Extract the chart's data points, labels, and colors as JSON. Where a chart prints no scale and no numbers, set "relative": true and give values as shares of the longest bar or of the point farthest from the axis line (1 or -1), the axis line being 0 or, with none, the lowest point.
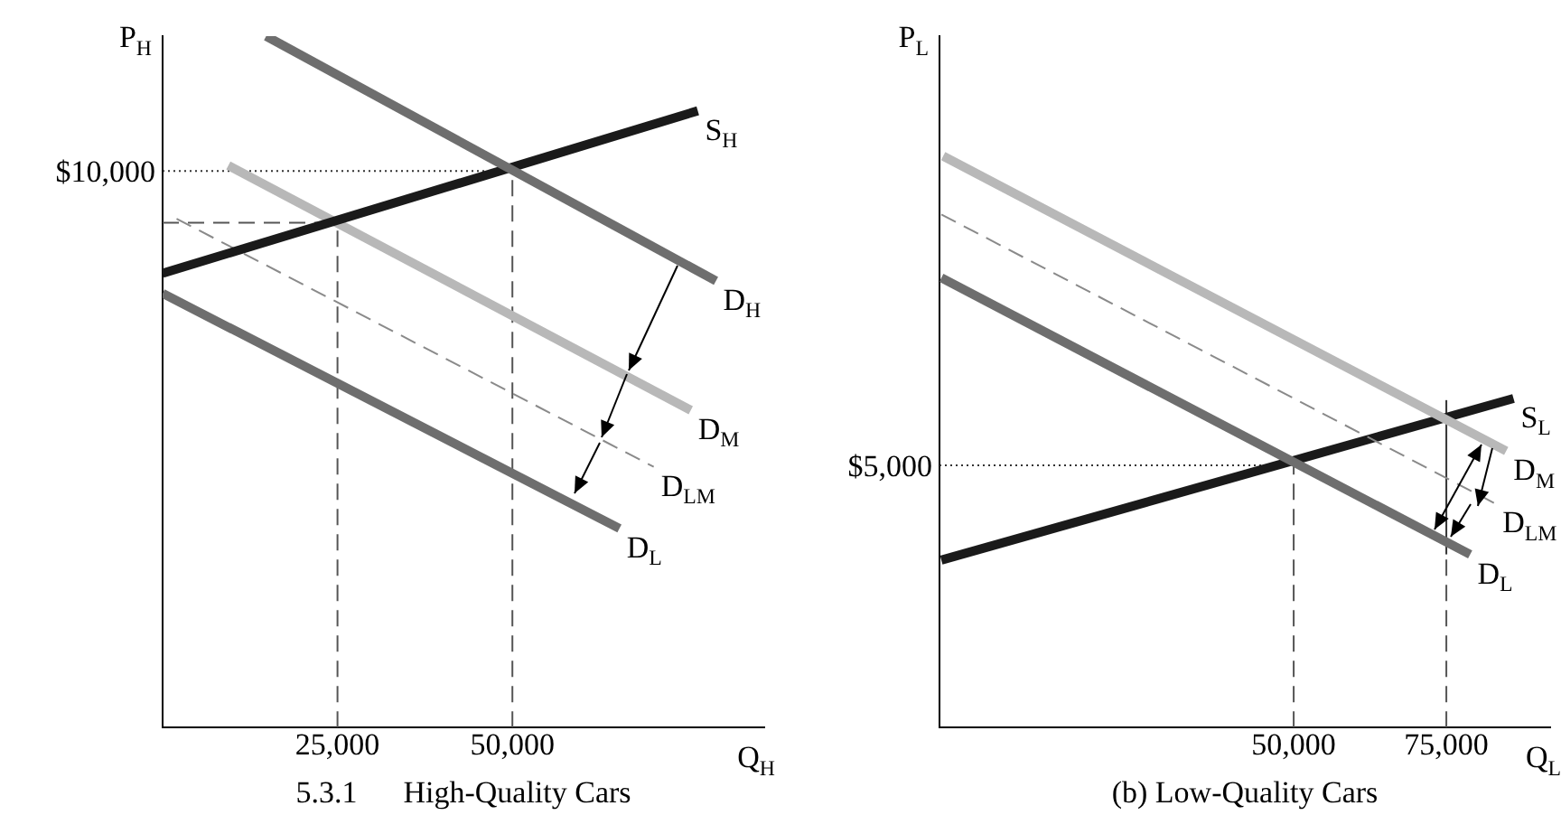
{
  "chart_data": [
    {
      "type": "line",
      "relative": true,
      "marker": "none",
      "title": "5.3.1      High-Quality Cars",
      "xlabel": "Q$_{H}$",
      "ylabel": "P$_{H}$",
      "xlim": [
        0,
        86000
      ],
      "xticks": [
        {
          "value": 25000,
          "label": "25,000"
        },
        {
          "value": 50000,
          "label": "50,000"
        }
      ],
      "annotations": [
        {
          "text": "$10,000",
          "x": 0,
          "y": 0.805
        }
      ],
      "series": [
        {
          "name": "D$_{H}$",
          "color": "#6e6e6e",
          "line_style": "solid",
          "x": [
            14800,
            79100
          ],
          "values": [
            1,
            0.646
          ]
        },
        {
          "name": "S$_{H}$",
          "color": "#1a1a1a",
          "line_style": "solid",
          "x": [
            0,
            76500
          ],
          "values": [
            0.657,
            0.892
          ]
        },
        {
          "name": "D$_{M}$",
          "color": "#b8b8b8",
          "line_style": "solid",
          "x": [
            9400,
            75500
          ],
          "values": [
            0.813,
            0.459
          ]
        },
        {
          "name": "D$_{LM}$",
          "color": "#8a8a8a",
          "line_style": "dashed",
          "x": [
            2000,
            70200
          ],
          "values": [
            0.736,
            0.377
          ]
        },
        {
          "name": "D$_{L}$",
          "color": "#6e6e6e",
          "line_style": "solid",
          "x": [
            0,
            65300
          ],
          "values": [
            0.628,
            0.288
          ]
        },
        {
          "color": "#333333",
          "line_style": "dotted",
          "x": [
            0,
            50000
          ],
          "values": [
            0.805,
            0.805
          ]
        },
        {
          "color": "#555555",
          "line_style": "dashed",
          "x": [
            50000,
            50000
          ],
          "values": [
            0,
            0.805
          ]
        },
        {
          "color": "#555555",
          "line_style": "dashed",
          "x": [
            0,
            25000
          ],
          "values": [
            0.73,
            0.73
          ]
        },
        {
          "color": "#555555",
          "line_style": "dashed",
          "x": [
            25000,
            25000
          ],
          "values": [
            0,
            0.73
          ]
        }
      ]
    },
    {
      "type": "line",
      "relative": true,
      "marker": "none",
      "title": "(b) Low-Quality Cars",
      "xlabel": "Q$_{L}$",
      "ylabel": "P$_{L}$",
      "xlim": [
        -8000,
        92000
      ],
      "xticks": [
        {
          "value": 50000,
          "label": "50,000"
        },
        {
          "value": 75000,
          "label": "75,000"
        }
      ],
      "annotations": [
        {
          "text": "$5,000",
          "x": -8000,
          "y": 0.459
        }
      ],
      "series": [
        {
          "name": "D$_{M}$",
          "color": "#b8b8b8",
          "line_style": "solid",
          "x": [
            -7400,
            84800
          ],
          "values": [
            1,
            0.484
          ]
        },
        {
          "name": "D$_{LM}$",
          "color": "#8a8a8a",
          "line_style": "dashed",
          "x": [
            -7700,
            83000
          ],
          "values": [
            0.898,
            0.392
          ]
        },
        {
          "name": "D$_{L}$",
          "color": "#6e6e6e",
          "line_style": "solid",
          "x": [
            -7700,
            78900
          ],
          "values": [
            0.787,
            0.303
          ]
        },
        {
          "name": "S$_{L}$",
          "color": "#1a1a1a",
          "line_style": "solid",
          "x": [
            -7700,
            86000
          ],
          "values": [
            0.293,
            0.576
          ]
        },
        {
          "color": "#333333",
          "line_style": "dotted",
          "x": [
            -8000,
            50000
          ],
          "values": [
            0.459,
            0.459
          ]
        },
        {
          "color": "#555555",
          "line_style": "dashed",
          "x": [
            50000,
            50000
          ],
          "values": [
            0,
            0.459
          ]
        },
        {
          "color": "#555555",
          "line_style": "dashed",
          "x": [
            75000,
            75000
          ],
          "values": [
            0,
            0.303
          ]
        },
        {
          "color": "#333333",
          "line_style": "solid",
          "x": [
            75000,
            75000
          ],
          "values": [
            0.303,
            0.573
          ]
        }
      ]
    }
  ]
}
